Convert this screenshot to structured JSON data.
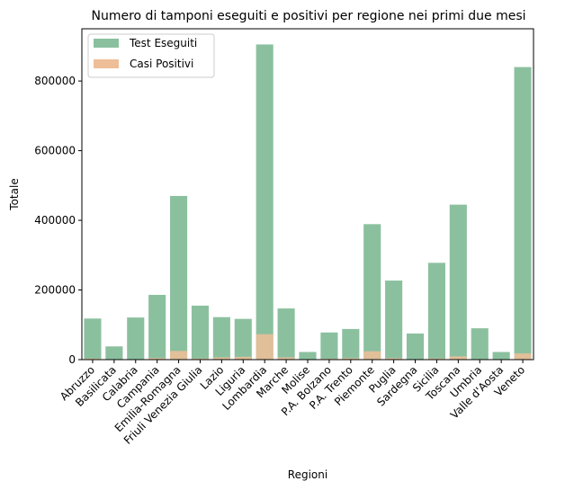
{
  "chart_data": {
    "type": "bar",
    "title": "Numero di tamponi eseguiti e positivi per regione nei primi due mesi",
    "xlabel": "Regioni",
    "ylabel": "Totale",
    "ylim": [
      0,
      950000
    ],
    "yticks": [
      0,
      200000,
      400000,
      600000,
      800000
    ],
    "legend_position": "top-left",
    "grid": false,
    "categories": [
      "Abruzzo",
      "Basilicata",
      "Calabria",
      "Campania",
      "Emilia-Romagna",
      "Friuli Venezia Giulia",
      "Lazio",
      "Liguria",
      "Lombardia",
      "Marche",
      "Molise",
      "P.A. Bolzano",
      "P.A. Trento",
      "Piemonte",
      "Puglia",
      "Sardegna",
      "Sicilia",
      "Toscana",
      "Umbria",
      "Valle d'Aosta",
      "Veneto"
    ],
    "series": [
      {
        "name": "Test Eseguiti",
        "color": "#8bc09f",
        "values": [
          118000,
          38000,
          121000,
          186000,
          470000,
          155000,
          122000,
          117000,
          905000,
          147000,
          22000,
          78000,
          88000,
          389000,
          227000,
          75000,
          278000,
          445000,
          90000,
          22000,
          840000
        ]
      },
      {
        "name": "Casi Positivi",
        "color": "#eebe98",
        "values": [
          3000,
          400,
          1100,
          4500,
          25000,
          3100,
          6500,
          8000,
          73000,
          6600,
          300,
          2500,
          4200,
          24000,
          4200,
          1300,
          3300,
          9300,
          1400,
          1100,
          18000
        ]
      }
    ]
  }
}
